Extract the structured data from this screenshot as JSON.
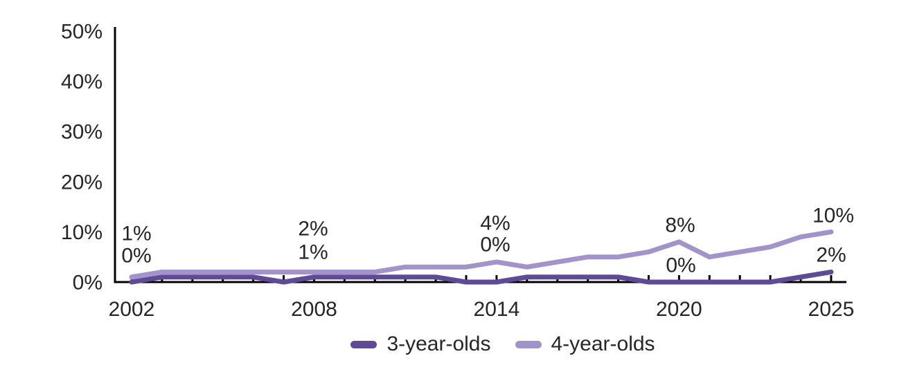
{
  "chart_data": {
    "type": "line",
    "title": "",
    "xlabel": "",
    "ylabel": "",
    "x": [
      2002,
      2003,
      2004,
      2005,
      2006,
      2007,
      2008,
      2009,
      2010,
      2011,
      2012,
      2013,
      2014,
      2015,
      2016,
      2017,
      2018,
      2019,
      2020,
      2021,
      2022,
      2023,
      2024,
      2025
    ],
    "x_tick_labels": [
      "2002",
      "2008",
      "2014",
      "2020",
      "2025"
    ],
    "x_tick_years": [
      2002,
      2008,
      2014,
      2020,
      2025
    ],
    "y_tick_labels": [
      "0%",
      "10%",
      "20%",
      "30%",
      "40%",
      "50%"
    ],
    "y_tick_values": [
      0,
      10,
      20,
      30,
      40,
      50
    ],
    "ylim": [
      0,
      50
    ],
    "grid": false,
    "legend_position": "bottom-center",
    "axis_color": "#000000",
    "text_color": "#262626",
    "series": [
      {
        "name": "3-year-olds",
        "color": "#5e4a95",
        "values": [
          0,
          1,
          1,
          1,
          1,
          0,
          1,
          1,
          1,
          1,
          1,
          0,
          0,
          1,
          1,
          1,
          1,
          0,
          0,
          0,
          0,
          0,
          1,
          2
        ]
      },
      {
        "name": "4-year-olds",
        "color": "#a294cb",
        "values": [
          1,
          2,
          2,
          2,
          2,
          2,
          2,
          2,
          2,
          3,
          3,
          3,
          4,
          3,
          4,
          5,
          5,
          6,
          8,
          5,
          6,
          7,
          9,
          10
        ]
      }
    ],
    "annotations": [
      {
        "year": 2002,
        "series": "4-year-olds",
        "text": "1%"
      },
      {
        "year": 2002,
        "series": "3-year-olds",
        "text": "0%"
      },
      {
        "year": 2008,
        "series": "4-year-olds",
        "text": "2%"
      },
      {
        "year": 2008,
        "series": "3-year-olds",
        "text": "1%"
      },
      {
        "year": 2014,
        "series": "4-year-olds",
        "text": "4%"
      },
      {
        "year": 2014,
        "series": "3-year-olds",
        "text": "0%"
      },
      {
        "year": 2020,
        "series": "4-year-olds",
        "text": "8%"
      },
      {
        "year": 2020,
        "series": "3-year-olds",
        "text": "0%"
      },
      {
        "year": 2025,
        "series": "4-year-olds",
        "text": "10%"
      },
      {
        "year": 2025,
        "series": "3-year-olds",
        "text": "2%"
      }
    ]
  }
}
